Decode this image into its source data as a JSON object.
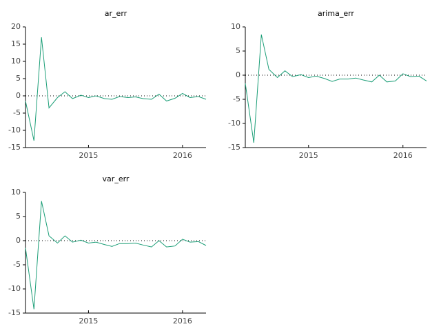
{
  "chart_data": [
    {
      "type": "line",
      "title": "ar_err",
      "x": [
        2014.33,
        2014.42,
        2014.5,
        2014.58,
        2014.67,
        2014.75,
        2014.83,
        2014.92,
        2015.0,
        2015.08,
        2015.17,
        2015.25,
        2015.33,
        2015.42,
        2015.5,
        2015.58,
        2015.67,
        2015.75,
        2015.83,
        2015.92,
        2016.0,
        2016.08,
        2016.17,
        2016.25
      ],
      "series": [
        {
          "name": "ar_err",
          "color": "#1b9e77",
          "values": [
            -1.5,
            -13,
            17,
            -3.5,
            -0.5,
            1.2,
            -0.8,
            0.2,
            -0.5,
            0,
            -0.8,
            -1,
            -0.2,
            -0.5,
            -0.3,
            -0.8,
            -1,
            0.5,
            -1.5,
            -0.7,
            0.7,
            -0.5,
            -0.2,
            -1
          ]
        }
      ],
      "xlim": [
        2014.33,
        2016.25
      ],
      "xticks": [
        2015,
        2016
      ],
      "ylim": [
        -15,
        20
      ],
      "yticks": [
        -15,
        -10,
        -5,
        0,
        5,
        10,
        15,
        20
      ],
      "zero_line": true
    },
    {
      "type": "line",
      "title": "arima_err",
      "x": [
        2014.33,
        2014.42,
        2014.5,
        2014.58,
        2014.67,
        2014.75,
        2014.83,
        2014.92,
        2015.0,
        2015.08,
        2015.17,
        2015.25,
        2015.33,
        2015.42,
        2015.5,
        2015.58,
        2015.67,
        2015.75,
        2015.83,
        2015.92,
        2016.0,
        2016.08,
        2016.17,
        2016.25
      ],
      "series": [
        {
          "name": "arima_err",
          "color": "#1b9e77",
          "values": [
            -1.7,
            -14,
            8.4,
            1.2,
            -0.5,
            0.9,
            -0.3,
            0.1,
            -0.5,
            -0.2,
            -0.7,
            -1.3,
            -0.8,
            -0.8,
            -0.6,
            -1,
            -1.4,
            0,
            -1.4,
            -1.2,
            0.3,
            -0.3,
            -0.2,
            -1.2
          ]
        }
      ],
      "xlim": [
        2014.33,
        2016.25
      ],
      "xticks": [
        2015,
        2016
      ],
      "ylim": [
        -15,
        10
      ],
      "yticks": [
        -15,
        -10,
        -5,
        0,
        5,
        10
      ],
      "zero_line": true
    },
    {
      "type": "line",
      "title": "var_err",
      "x": [
        2014.33,
        2014.42,
        2014.5,
        2014.58,
        2014.67,
        2014.75,
        2014.83,
        2014.92,
        2015.0,
        2015.08,
        2015.17,
        2015.25,
        2015.33,
        2015.42,
        2015.5,
        2015.58,
        2015.67,
        2015.75,
        2015.83,
        2015.92,
        2016.0,
        2016.08,
        2016.17,
        2016.25
      ],
      "series": [
        {
          "name": "var_err",
          "color": "#1b9e77",
          "values": [
            -1.5,
            -14.2,
            8.2,
            1,
            -0.5,
            1,
            -0.3,
            0.1,
            -0.5,
            -0.3,
            -0.8,
            -1.2,
            -0.6,
            -0.6,
            -0.5,
            -0.9,
            -1.3,
            0,
            -1.3,
            -1.1,
            0.3,
            -0.3,
            -0.2,
            -1
          ]
        }
      ],
      "xlim": [
        2014.33,
        2016.25
      ],
      "xticks": [
        2015,
        2016
      ],
      "ylim": [
        -15,
        10
      ],
      "yticks": [
        -15,
        -10,
        -5,
        0,
        5,
        10
      ],
      "zero_line": true
    }
  ]
}
